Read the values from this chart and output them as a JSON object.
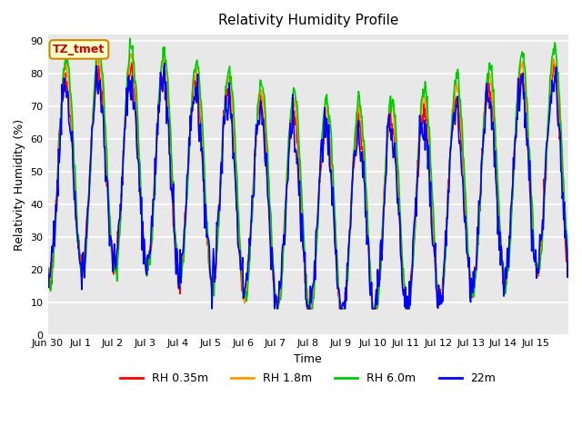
{
  "title": "Relativity Humidity Profile",
  "xlabel": "Time",
  "ylabel": "Relativity Humidity (%)",
  "ylim": [
    0,
    92
  ],
  "yticks": [
    0,
    10,
    20,
    30,
    40,
    50,
    60,
    70,
    80,
    90
  ],
  "annotation": "TZ_tmet",
  "annotation_color": "#cc0000",
  "annotation_bg": "#ffffcc",
  "annotation_border": "#cc8800",
  "plot_bg": "#e8e8e8",
  "line_colors": {
    "rh035": "#ff0000",
    "rh18": "#ff9900",
    "rh60": "#00cc00",
    "rh22m": "#0000ff"
  },
  "legend": [
    {
      "label": "RH 0.35m",
      "color": "#ff0000"
    },
    {
      "label": "RH 1.8m",
      "color": "#ff9900"
    },
    {
      "label": "RH 6.0m",
      "color": "#00cc00"
    },
    {
      "label": "22m",
      "color": "#0000ff"
    }
  ],
  "xtick_labels": [
    "Jun 30",
    "Jul 1",
    "Jul 2",
    "Jul 3",
    "Jul 4",
    "Jul 5",
    "Jul 6",
    "Jul 7",
    "Jul 8",
    "Jul 9",
    "Jul 10",
    "Jul 11",
    "Jul 12",
    "Jul 13",
    "Jul 14",
    "Jul 15"
  ],
  "line_width": 1.2
}
